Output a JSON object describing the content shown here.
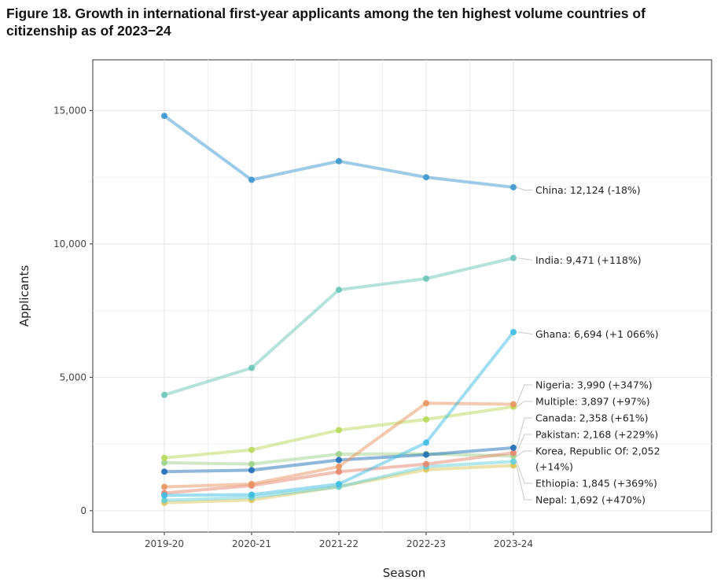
{
  "title": "Figure 18. Growth in international first-year applicants among the ten highest volume countries of citizenship as of 2023−24",
  "chart_data": {
    "type": "line",
    "title": "Figure 18. Growth in international first-year applicants among the ten highest volume countries of citizenship as of 2023−24",
    "xlabel": "Season",
    "ylabel": "Applicants",
    "categories": [
      "2019-20",
      "2020-21",
      "2021-22",
      "2022-23",
      "2023-24"
    ],
    "ylim": [
      -800,
      16900
    ],
    "yticks": [
      0,
      5000,
      10000,
      15000
    ],
    "ytick_labels": [
      "0",
      "5,000",
      "10,000",
      "15,000"
    ],
    "grid": true,
    "series": [
      {
        "name": "China",
        "values": [
          14800,
          12400,
          13100,
          12500,
          12124
        ],
        "color": "#3d97cf",
        "label": "China: 12,124 (-18%)",
        "label_lines": [
          "China: 12,124 (-18%)"
        ]
      },
      {
        "name": "India",
        "values": [
          4340,
          5350,
          8280,
          8700,
          9471
        ],
        "color": "#6cc5b8",
        "label": "India: 9,471 (+118%)",
        "label_lines": [
          "India: 9,471 (+118%)"
        ]
      },
      {
        "name": "Ghana",
        "values": [
          574,
          600,
          1000,
          2550,
          6694
        ],
        "color": "#3dbde2",
        "label": "Ghana: 6,694 (+1 066%)",
        "label_lines": [
          "Ghana: 6,694 (+1 066%)"
        ]
      },
      {
        "name": "Nigeria",
        "values": [
          893,
          1000,
          1650,
          4030,
          3990
        ],
        "color": "#e89660",
        "label": "Nigeria: 3,990 (+347%)",
        "label_lines": [
          "Nigeria: 3,990 (+347%)"
        ]
      },
      {
        "name": "Multiple",
        "values": [
          1978,
          2280,
          3020,
          3420,
          3897
        ],
        "color": "#b9d95b",
        "label": "Multiple: 3,897 (+97%)",
        "label_lines": [
          "Multiple: 3,897 (+97%)"
        ]
      },
      {
        "name": "Canada",
        "values": [
          1465,
          1520,
          1900,
          2100,
          2358
        ],
        "color": "#1f6eb7",
        "label": "Canada: 2,358 (+61%)",
        "label_lines": [
          "Canada: 2,358 (+61%)"
        ]
      },
      {
        "name": "Pakistan",
        "values": [
          660,
          940,
          1460,
          1750,
          2168
        ],
        "color": "#e8866e",
        "label": "Pakistan: 2,168 (+229%)",
        "label_lines": [
          "Pakistan: 2,168 (+229%)"
        ]
      },
      {
        "name": "Korea, Republic Of",
        "values": [
          1800,
          1750,
          2120,
          2130,
          2052
        ],
        "color": "#9fd38c",
        "label": "Korea, Republic Of: 2,052 (+14%)",
        "label_lines": [
          "Korea, Republic Of: 2,052",
          "(+14%)"
        ]
      },
      {
        "name": "Ethiopia",
        "values": [
          393,
          500,
          900,
          1650,
          1845
        ],
        "color": "#66cfd8",
        "label": "Ethiopia: 1,845 (+369%)",
        "label_lines": [
          "Ethiopia: 1,845 (+369%)"
        ]
      },
      {
        "name": "Nepal",
        "values": [
          297,
          400,
          900,
          1540,
          1692
        ],
        "color": "#dcc65a",
        "label": "Nepal: 1,692 (+470%)",
        "label_lines": [
          "Nepal: 1,692 (+470%)"
        ]
      }
    ]
  }
}
